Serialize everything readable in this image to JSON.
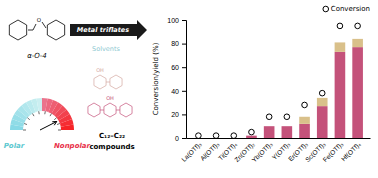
{
  "chart_data": {
    "type": "bar",
    "stacked": true,
    "grid": false,
    "legend": "upper right",
    "categories": [
      "La(OTf)₃",
      "Al(OTf)₃",
      "Ti(OTf)₄",
      "Zn(OTf)₂",
      "Yb(OTf)₃",
      "Y(OTf)₃",
      "Er(OTf)₃",
      "Sc(OTf)₃",
      "Fe(OTf)₃",
      "Hf(OTf)₄"
    ],
    "series": [
      {
        "type": "bar",
        "color": "#C4527A",
        "values": [
          0,
          0,
          0,
          2,
          10,
          10,
          12,
          27,
          73,
          77
        ]
      },
      {
        "type": "bar",
        "color": "#D9C08A",
        "values": [
          0,
          0,
          0,
          0,
          0,
          0,
          6,
          7,
          8,
          7
        ]
      },
      {
        "name": "Conversion",
        "type": "scatter",
        "marker": "circle",
        "color": "#000000",
        "values": [
          2,
          2,
          2,
          5,
          18,
          18,
          28,
          38,
          95,
          95
        ]
      }
    ],
    "ylabel": "Conversion/yield (%)",
    "ylim": [
      0,
      100
    ],
    "yticks": [
      0,
      20,
      40,
      60,
      80,
      100
    ],
    "annotations": [
      {
        "text": "O",
        "color": "#000000"
      },
      {
        "text": "α-O-4",
        "color": "#000000"
      },
      {
        "text": "Metal triflates",
        "color": "#FFFFFF"
      },
      {
        "text": "Solvents",
        "color": "#8DC8D0"
      },
      {
        "text": "Polar",
        "color": "#5BC8D0"
      },
      {
        "text": "Nonpolar",
        "color": "#E8324A"
      },
      {
        "text": "OH",
        "color": "#D4A8A0"
      },
      {
        "text": "OH",
        "color": "#C4527A"
      },
      {
        "text": "C₁₂–C₂₂",
        "color": "#000000"
      },
      {
        "text": "compounds",
        "color": "#000000"
      }
    ]
  }
}
